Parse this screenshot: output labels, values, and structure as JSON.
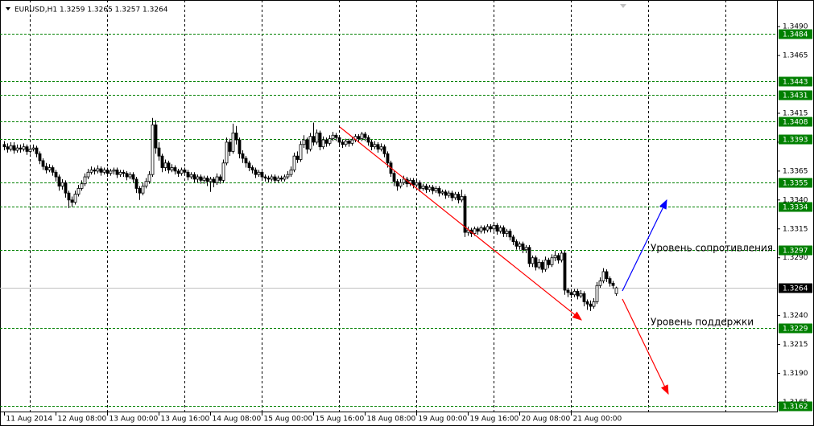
{
  "chart_data": {
    "type": "candlestick",
    "title": "EURUSD,H1  1.3259 1.3265 1.3257 1.3264",
    "open": [
      1.3388,
      1.3386,
      1.3384,
      1.3387,
      1.3383,
      1.3385,
      1.3384,
      1.3386,
      1.3382,
      1.3384,
      1.3385,
      1.338,
      1.3374,
      1.3369,
      1.3366,
      1.3368,
      1.3364,
      1.336,
      1.3352,
      1.3355,
      1.3346,
      1.334,
      1.3338,
      1.3345,
      1.335,
      1.3354,
      1.336,
      1.3364,
      1.3366,
      1.3365,
      1.3367,
      1.3364,
      1.3366,
      1.3363,
      1.3365,
      1.3366,
      1.3362,
      1.3364,
      1.3363,
      1.336,
      1.3362,
      1.3358,
      1.335,
      1.3346,
      1.3352,
      1.3356,
      1.3362,
      1.3405,
      1.3385,
      1.3378,
      1.3368,
      1.3372,
      1.3366,
      1.3368,
      1.3365,
      1.3363,
      1.3366,
      1.3364,
      1.336,
      1.3362,
      1.3358,
      1.336,
      1.3357,
      1.3359,
      1.3356,
      1.3358,
      1.3355,
      1.336,
      1.3357,
      1.3372,
      1.339,
      1.3382,
      1.3398,
      1.3392,
      1.338,
      1.3376,
      1.3372,
      1.3368,
      1.3366,
      1.3362,
      1.3364,
      1.336,
      1.3359,
      1.3358,
      1.336,
      1.3357,
      1.3359,
      1.3358,
      1.336,
      1.3362,
      1.3366,
      1.3378,
      1.3375,
      1.3388,
      1.3392,
      1.3384,
      1.3395,
      1.339,
      1.3398,
      1.3386,
      1.3392,
      1.3389,
      1.3393,
      1.3396,
      1.3394,
      1.339,
      1.3388,
      1.3391,
      1.3389,
      1.3392,
      1.3395,
      1.3393,
      1.3397,
      1.3394,
      1.339,
      1.3386,
      1.3388,
      1.3384,
      1.3386,
      1.338,
      1.3372,
      1.3363,
      1.3356,
      1.3352,
      1.3355,
      1.3358,
      1.3354,
      1.3357,
      1.3353,
      1.3355,
      1.335,
      1.3352,
      1.3349,
      1.3351,
      1.3348,
      1.335,
      1.3346,
      1.3347,
      1.3344,
      1.3346,
      1.3342,
      1.3345,
      1.334,
      1.3343,
      1.3312,
      1.3314,
      1.3311,
      1.3315,
      1.3313,
      1.3316,
      1.3314,
      1.3317,
      1.3315,
      1.3318,
      1.3313,
      1.3316,
      1.3311,
      1.3313,
      1.3308,
      1.3304,
      1.33,
      1.3302,
      1.3297,
      1.3299,
      1.3285,
      1.329,
      1.3282,
      1.3286,
      1.328,
      1.3288,
      1.3284,
      1.329,
      1.3292,
      1.3288,
      1.3294,
      1.3262,
      1.326,
      1.3258,
      1.3261,
      1.3257,
      1.3259,
      1.3252,
      1.325,
      1.3248,
      1.3252,
      1.3266,
      1.327,
      1.3278,
      1.3272,
      1.3268,
      1.3259
    ],
    "high": [
      1.3391,
      1.3389,
      1.339,
      1.339,
      1.3388,
      1.3388,
      1.3389,
      1.3388,
      1.3387,
      1.3388,
      1.3387,
      1.3382,
      1.3376,
      1.3372,
      1.3371,
      1.337,
      1.3366,
      1.3362,
      1.3358,
      1.3357,
      1.3348,
      1.3343,
      1.3348,
      1.3353,
      1.3357,
      1.3363,
      1.3367,
      1.3369,
      1.3368,
      1.337,
      1.3369,
      1.3368,
      1.3368,
      1.3367,
      1.3368,
      1.3368,
      1.3366,
      1.3366,
      1.3365,
      1.3364,
      1.3364,
      1.336,
      1.3352,
      1.3355,
      1.3359,
      1.3365,
      1.3411,
      1.3409,
      1.339,
      1.338,
      1.3375,
      1.3374,
      1.3371,
      1.337,
      1.3367,
      1.3368,
      1.3368,
      1.3366,
      1.3364,
      1.3364,
      1.3362,
      1.3362,
      1.3361,
      1.3361,
      1.336,
      1.336,
      1.3363,
      1.3362,
      1.3375,
      1.3394,
      1.3393,
      1.3406,
      1.3404,
      1.3394,
      1.3383,
      1.3378,
      1.3374,
      1.337,
      1.3368,
      1.3366,
      1.3366,
      1.3362,
      1.3361,
      1.3362,
      1.3362,
      1.3361,
      1.3361,
      1.3362,
      1.3365,
      1.3369,
      1.3381,
      1.3382,
      1.3391,
      1.3396,
      1.3394,
      1.3398,
      1.3407,
      1.3401,
      1.34,
      1.3395,
      1.3394,
      1.3396,
      1.3399,
      1.3398,
      1.3396,
      1.3392,
      1.3393,
      1.3393,
      1.3394,
      1.3397,
      1.3397,
      1.3399,
      1.3399,
      1.3396,
      1.3392,
      1.3391,
      1.339,
      1.3389,
      1.3388,
      1.3382,
      1.3374,
      1.3365,
      1.3358,
      1.3358,
      1.3361,
      1.336,
      1.3359,
      1.3359,
      1.3357,
      1.3357,
      1.3354,
      1.3354,
      1.3353,
      1.3353,
      1.3352,
      1.3352,
      1.3349,
      1.3349,
      1.3348,
      1.3348,
      1.3347,
      1.3347,
      1.3349,
      1.3345,
      1.3317,
      1.3316,
      1.3317,
      1.3317,
      1.3318,
      1.3318,
      1.3319,
      1.3319,
      1.3321,
      1.332,
      1.3318,
      1.3318,
      1.3315,
      1.3315,
      1.331,
      1.3306,
      1.3304,
      1.3304,
      1.3301,
      1.3301,
      1.3292,
      1.3292,
      1.3289,
      1.3288,
      1.3291,
      1.329,
      1.3293,
      1.3296,
      1.3294,
      1.3296,
      1.3296,
      1.3264,
      1.3263,
      1.3263,
      1.3263,
      1.3262,
      1.3261,
      1.3254,
      1.3253,
      1.3255,
      1.3269,
      1.3273,
      1.3281,
      1.328,
      1.3274,
      1.327,
      1.3265
    ],
    "low": [
      1.3383,
      1.3381,
      1.3382,
      1.338,
      1.3381,
      1.3381,
      1.3382,
      1.3379,
      1.338,
      1.3382,
      1.3377,
      1.3371,
      1.3366,
      1.3363,
      1.3364,
      1.3361,
      1.3356,
      1.3348,
      1.3349,
      1.3342,
      1.3333,
      1.3334,
      1.3336,
      1.3343,
      1.3348,
      1.3352,
      1.3358,
      1.3362,
      1.3362,
      1.3363,
      1.3361,
      1.3362,
      1.336,
      1.3361,
      1.3362,
      1.3359,
      1.336,
      1.336,
      1.3357,
      1.3358,
      1.3355,
      1.3346,
      1.334,
      1.3344,
      1.335,
      1.3354,
      1.336,
      1.338,
      1.3374,
      1.3364,
      1.3365,
      1.3363,
      1.3364,
      1.3362,
      1.336,
      1.3361,
      1.3361,
      1.3357,
      1.3358,
      1.3355,
      1.3355,
      1.3354,
      1.3354,
      1.3352,
      1.3347,
      1.3351,
      1.3353,
      1.3354,
      1.3355,
      1.337,
      1.3378,
      1.338,
      1.3388,
      1.3376,
      1.3372,
      1.3368,
      1.3365,
      1.3363,
      1.3359,
      1.336,
      1.3357,
      1.3356,
      1.3355,
      1.3356,
      1.3355,
      1.3355,
      1.3356,
      1.3356,
      1.3358,
      1.336,
      1.3364,
      1.3372,
      1.3373,
      1.3385,
      1.338,
      1.3382,
      1.3387,
      1.3388,
      1.3383,
      1.3384,
      1.3386,
      1.3387,
      1.3391,
      1.3391,
      1.3387,
      1.3385,
      1.3386,
      1.3386,
      1.3387,
      1.339,
      1.339,
      1.3391,
      1.3391,
      1.3387,
      1.3383,
      1.3384,
      1.3381,
      1.3382,
      1.3377,
      1.3368,
      1.336,
      1.3352,
      1.3348,
      1.335,
      1.3353,
      1.3351,
      1.3352,
      1.335,
      1.3351,
      1.3347,
      1.3348,
      1.3346,
      1.3347,
      1.3345,
      1.3346,
      1.3343,
      1.3344,
      1.3341,
      1.3342,
      1.3339,
      1.334,
      1.3337,
      1.3338,
      1.3308,
      1.3309,
      1.3308,
      1.3309,
      1.331,
      1.3311,
      1.3311,
      1.3312,
      1.3312,
      1.3313,
      1.331,
      1.3311,
      1.3308,
      1.3308,
      1.3305,
      1.3301,
      1.3297,
      1.3297,
      1.3294,
      1.3294,
      1.3282,
      1.3282,
      1.3279,
      1.328,
      1.3277,
      1.3278,
      1.3281,
      1.3282,
      1.3287,
      1.3285,
      1.3286,
      1.3258,
      1.3256,
      1.3255,
      1.3256,
      1.3254,
      1.3255,
      1.3248,
      1.3245,
      1.3244,
      1.3246,
      1.325,
      1.3264,
      1.3268,
      1.3269,
      1.3265,
      1.3263,
      1.3257
    ],
    "close": [
      1.3386,
      1.3384,
      1.3387,
      1.3383,
      1.3385,
      1.3384,
      1.3386,
      1.3382,
      1.3384,
      1.3385,
      1.338,
      1.3374,
      1.3369,
      1.3366,
      1.3368,
      1.3364,
      1.336,
      1.3352,
      1.3355,
      1.3346,
      1.334,
      1.3338,
      1.3345,
      1.335,
      1.3354,
      1.336,
      1.3364,
      1.3366,
      1.3365,
      1.3367,
      1.3364,
      1.3366,
      1.3363,
      1.3365,
      1.3366,
      1.3362,
      1.3364,
      1.3363,
      1.336,
      1.3362,
      1.3358,
      1.335,
      1.3346,
      1.3352,
      1.3356,
      1.3362,
      1.3405,
      1.3385,
      1.3378,
      1.3368,
      1.3372,
      1.3366,
      1.3368,
      1.3365,
      1.3363,
      1.3366,
      1.3364,
      1.336,
      1.3362,
      1.3358,
      1.336,
      1.3357,
      1.3359,
      1.3356,
      1.3358,
      1.3355,
      1.336,
      1.3357,
      1.3372,
      1.339,
      1.3382,
      1.3398,
      1.3392,
      1.338,
      1.3376,
      1.3372,
      1.3368,
      1.3366,
      1.3362,
      1.3364,
      1.336,
      1.3359,
      1.3358,
      1.336,
      1.3357,
      1.3359,
      1.3358,
      1.336,
      1.3362,
      1.3366,
      1.3378,
      1.3375,
      1.3388,
      1.3392,
      1.3384,
      1.3395,
      1.339,
      1.3398,
      1.3386,
      1.3392,
      1.3389,
      1.3393,
      1.3396,
      1.3394,
      1.339,
      1.3388,
      1.3391,
      1.3389,
      1.3392,
      1.3395,
      1.3393,
      1.3397,
      1.3394,
      1.339,
      1.3386,
      1.3388,
      1.3384,
      1.3386,
      1.338,
      1.3372,
      1.3363,
      1.3356,
      1.3352,
      1.3355,
      1.3358,
      1.3354,
      1.3357,
      1.3353,
      1.3355,
      1.335,
      1.3352,
      1.3349,
      1.3351,
      1.3348,
      1.335,
      1.3346,
      1.3347,
      1.3344,
      1.3346,
      1.3342,
      1.3345,
      1.334,
      1.3343,
      1.3312,
      1.3314,
      1.3311,
      1.3315,
      1.3313,
      1.3316,
      1.3314,
      1.3317,
      1.3315,
      1.3318,
      1.3313,
      1.3316,
      1.3311,
      1.3313,
      1.3308,
      1.3304,
      1.33,
      1.3302,
      1.3297,
      1.3299,
      1.3285,
      1.329,
      1.3282,
      1.3286,
      1.328,
      1.3288,
      1.3284,
      1.329,
      1.3292,
      1.3288,
      1.3294,
      1.3262,
      1.326,
      1.3258,
      1.3261,
      1.3257,
      1.3259,
      1.3252,
      1.325,
      1.3248,
      1.3252,
      1.3266,
      1.327,
      1.3278,
      1.3272,
      1.3268,
      1.3266,
      1.3264
    ],
    "up_color": "#ffffff",
    "down_color": "#000000",
    "xlim": [
      -1.25,
      240
    ],
    "xticks": [
      {
        "value": 0,
        "label": "11 Aug 2014"
      },
      {
        "value": 16,
        "label": "12 Aug 08:00"
      },
      {
        "value": 32,
        "label": "13 Aug 00:00"
      },
      {
        "value": 48,
        "label": "13 Aug 16:00"
      },
      {
        "value": 64,
        "label": "14 Aug 08:00"
      },
      {
        "value": 80,
        "label": "15 Aug 00:00"
      },
      {
        "value": 96,
        "label": "15 Aug 16:00"
      },
      {
        "value": 112,
        "label": "18 Aug 08:00"
      },
      {
        "value": 128,
        "label": "19 Aug 00:00"
      },
      {
        "value": 144,
        "label": "19 Aug 16:00"
      },
      {
        "value": 160,
        "label": "20 Aug 08:00"
      },
      {
        "value": 176,
        "label": "21 Aug 00:00"
      }
    ],
    "xgrid": [
      8,
      32,
      56,
      80,
      104,
      128,
      152,
      176,
      200,
      224
    ],
    "ylim": [
      1.3157,
      1.3513
    ],
    "yticks": [
      {
        "value": 1.349,
        "label": "1.3490"
      },
      {
        "value": 1.3465,
        "label": "1.3465"
      },
      {
        "value": 1.3415,
        "label": "1.3415"
      },
      {
        "value": 1.339,
        "label": "1.3390"
      },
      {
        "value": 1.3365,
        "label": "1.3365"
      },
      {
        "value": 1.334,
        "label": "1.3340"
      },
      {
        "value": 1.3315,
        "label": "1.3315"
      },
      {
        "value": 1.329,
        "label": "1.3290"
      },
      {
        "value": 1.324,
        "label": "1.3240"
      },
      {
        "value": 1.3215,
        "label": "1.3215"
      },
      {
        "value": 1.319,
        "label": "1.3190"
      },
      {
        "value": 1.3165,
        "label": "1.3165"
      }
    ],
    "levels": [
      {
        "value": 1.3484,
        "label": "1.3484"
      },
      {
        "value": 1.3443,
        "label": "1.3443"
      },
      {
        "value": 1.3431,
        "label": "1.3431"
      },
      {
        "value": 1.3408,
        "label": "1.3408"
      },
      {
        "value": 1.3393,
        "label": "1.3393"
      },
      {
        "value": 1.3355,
        "label": "1.3355"
      },
      {
        "value": 1.3334,
        "label": "1.3334"
      },
      {
        "value": 1.3297,
        "label": "1.3297"
      },
      {
        "value": 1.3229,
        "label": "1.3229"
      },
      {
        "value": 1.3162,
        "label": "1.3162"
      }
    ],
    "level_color": "#008000",
    "current_price": {
      "value": 1.3264,
      "label": "1.3264"
    },
    "annotations": [
      "Уровень сопротивления",
      "Уровень поддержки"
    ]
  }
}
